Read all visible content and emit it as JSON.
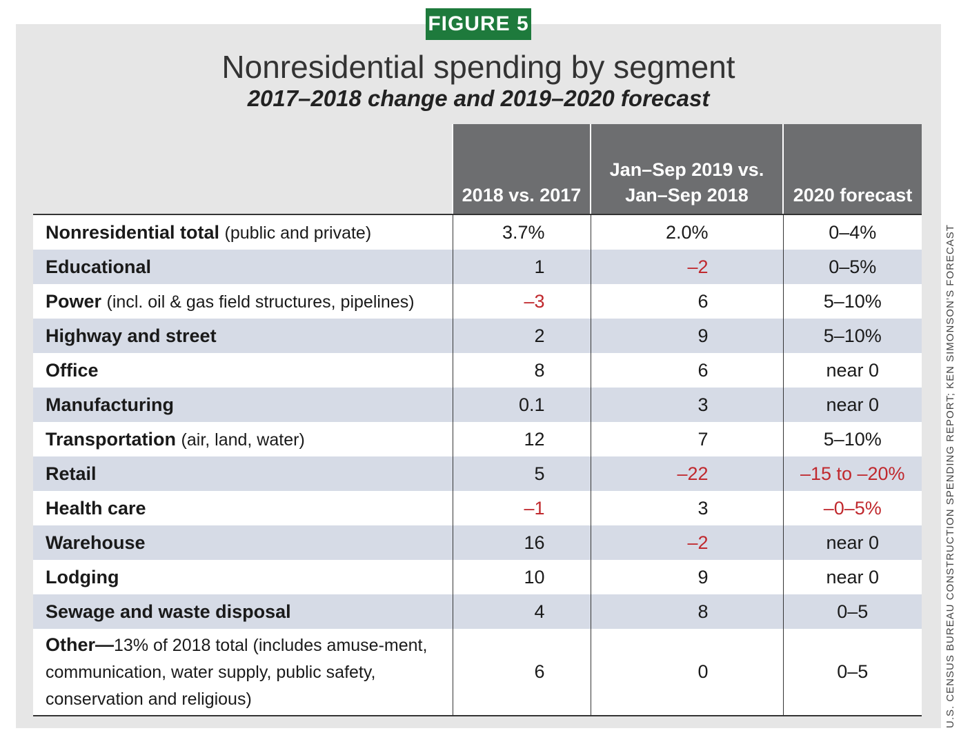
{
  "chart_data": {
    "type": "table",
    "figure_label": "FIGURE 5",
    "title": "Nonresidential spending by segment",
    "subtitle": "2017–2018 change and 2019–2020 forecast",
    "columns": [
      "2018 vs. 2017",
      "Jan–Sep 2019 vs. Jan–Sep 2018",
      "2020 forecast"
    ],
    "rows": [
      {
        "label": "Nonresidential total",
        "note": "(public and private)",
        "values": [
          "3.7%",
          "2.0%",
          "0–4%"
        ],
        "negative": [
          false,
          false,
          false
        ]
      },
      {
        "label": "Educational",
        "note": "",
        "values": [
          "1",
          "–2",
          "0–5%"
        ],
        "negative": [
          false,
          true,
          false
        ]
      },
      {
        "label": "Power",
        "note": "(incl. oil & gas field structures, pipelines)",
        "values": [
          "–3",
          "6",
          "5–10%"
        ],
        "negative": [
          true,
          false,
          false
        ]
      },
      {
        "label": "Highway and street",
        "note": "",
        "values": [
          "2",
          "9",
          "5–10%"
        ],
        "negative": [
          false,
          false,
          false
        ]
      },
      {
        "label": "Office",
        "note": "",
        "values": [
          "8",
          "6",
          "near 0"
        ],
        "negative": [
          false,
          false,
          false
        ]
      },
      {
        "label": "Manufacturing",
        "note": "",
        "values": [
          "0.1",
          "3",
          "near 0"
        ],
        "negative": [
          false,
          false,
          false
        ]
      },
      {
        "label": "Transportation",
        "note": "(air, land, water)",
        "values": [
          "12",
          "7",
          "5–10%"
        ],
        "negative": [
          false,
          false,
          false
        ]
      },
      {
        "label": "Retail",
        "note": "",
        "values": [
          "5",
          "–22",
          "–15 to –20%"
        ],
        "negative": [
          false,
          true,
          true
        ]
      },
      {
        "label": "Health care",
        "note": "",
        "values": [
          "–1",
          "3",
          "–0–5%"
        ],
        "negative": [
          true,
          false,
          true
        ]
      },
      {
        "label": "Warehouse",
        "note": "",
        "values": [
          "16",
          "–2",
          "near 0"
        ],
        "negative": [
          false,
          true,
          false
        ]
      },
      {
        "label": "Lodging",
        "note": "",
        "values": [
          "10",
          "9",
          "near 0"
        ],
        "negative": [
          false,
          false,
          false
        ]
      },
      {
        "label": "Sewage and waste disposal",
        "note": "",
        "values": [
          "4",
          "8",
          "0–5"
        ],
        "negative": [
          false,
          false,
          false
        ]
      },
      {
        "label": "Other—",
        "note": "13% of 2018 total (includes amuse-ment, communication, water supply, public safety, conservation and religious)",
        "values": [
          "6",
          "0",
          "0–5"
        ],
        "negative": [
          false,
          false,
          false
        ]
      }
    ],
    "source": "U.S. CENSUS BUREAU CONSTRUCTION SPENDING REPORT; KEN SIMONSON’S FORECAST"
  },
  "colors": {
    "badge": "#1e7a3c",
    "header": "#6d6e70",
    "row_shade": "#d6dbe6",
    "negative": "#c0282d",
    "panel": "#e6e6e6"
  }
}
